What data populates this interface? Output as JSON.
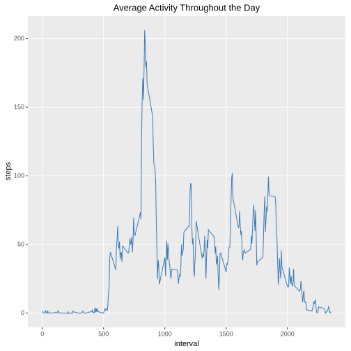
{
  "chart_data": {
    "type": "line",
    "title": "Average Activity Throughout the Day",
    "x_label": "interval",
    "y_label": "steps",
    "color": "#3b7bb5",
    "grid": true,
    "xlim": [
      -118,
      2473
    ],
    "xticks": [
      0,
      500,
      1000,
      1500,
      2000
    ],
    "ylim": [
      -10.3,
      216.5
    ],
    "yticks": [
      0,
      50,
      100,
      150,
      200
    ],
    "x": [
      0,
      5,
      10,
      15,
      20,
      25,
      30,
      35,
      40,
      45,
      50,
      55,
      100,
      105,
      110,
      115,
      120,
      125,
      130,
      135,
      140,
      145,
      150,
      155,
      200,
      205,
      210,
      215,
      220,
      225,
      230,
      235,
      240,
      245,
      250,
      255,
      300,
      305,
      310,
      315,
      320,
      325,
      330,
      335,
      340,
      345,
      350,
      355,
      400,
      405,
      410,
      415,
      420,
      425,
      430,
      435,
      440,
      445,
      450,
      455,
      500,
      505,
      510,
      515,
      520,
      525,
      530,
      535,
      540,
      545,
      550,
      555,
      600,
      605,
      610,
      615,
      620,
      625,
      630,
      635,
      640,
      645,
      650,
      655,
      700,
      705,
      710,
      715,
      720,
      725,
      730,
      735,
      740,
      745,
      750,
      755,
      800,
      805,
      810,
      815,
      820,
      825,
      830,
      835,
      840,
      845,
      850,
      855,
      900,
      905,
      910,
      915,
      920,
      925,
      930,
      935,
      940,
      945,
      950,
      955,
      1000,
      1005,
      1010,
      1015,
      1020,
      1025,
      1030,
      1035,
      1040,
      1045,
      1050,
      1055,
      1100,
      1105,
      1110,
      1115,
      1120,
      1125,
      1130,
      1135,
      1140,
      1145,
      1150,
      1155,
      1200,
      1205,
      1210,
      1215,
      1220,
      1225,
      1230,
      1235,
      1240,
      1245,
      1250,
      1255,
      1300,
      1305,
      1310,
      1315,
      1320,
      1325,
      1330,
      1335,
      1340,
      1345,
      1350,
      1355,
      1400,
      1405,
      1410,
      1415,
      1420,
      1425,
      1430,
      1435,
      1440,
      1445,
      1450,
      1455,
      1500,
      1505,
      1510,
      1515,
      1520,
      1525,
      1530,
      1535,
      1540,
      1545,
      1550,
      1555,
      1600,
      1605,
      1610,
      1615,
      1620,
      1625,
      1630,
      1635,
      1640,
      1645,
      1650,
      1655,
      1700,
      1705,
      1710,
      1715,
      1720,
      1725,
      1730,
      1735,
      1740,
      1745,
      1750,
      1755,
      1800,
      1805,
      1810,
      1815,
      1820,
      1825,
      1830,
      1835,
      1840,
      1845,
      1850,
      1855,
      1900,
      1905,
      1910,
      1915,
      1920,
      1925,
      1930,
      1935,
      1940,
      1945,
      1950,
      1955,
      2000,
      2005,
      2010,
      2015,
      2020,
      2025,
      2030,
      2035,
      2040,
      2045,
      2050,
      2055,
      2100,
      2105,
      2110,
      2115,
      2120,
      2125,
      2130,
      2135,
      2140,
      2145,
      2150,
      2155,
      2200,
      2205,
      2210,
      2215,
      2220,
      2225,
      2230,
      2235,
      2240,
      2245,
      2250,
      2255,
      2300,
      2305,
      2310,
      2315,
      2320,
      2325,
      2330,
      2335,
      2340,
      2345,
      2350,
      2355
    ],
    "values": [
      1.7,
      0.3,
      0.1,
      0.2,
      0.1,
      2.1,
      0.5,
      0.9,
      0,
      1.5,
      0.3,
      0.1,
      0.3,
      0.7,
      0.2,
      0.3,
      0,
      1.1,
      1.8,
      0.2,
      0.2,
      0.4,
      0.3,
      0,
      0,
      0,
      1.1,
      0,
      0,
      0.1,
      0,
      0.2,
      0,
      0,
      1.5,
      0.9,
      0,
      0,
      0,
      0,
      0.2,
      0.6,
      1.6,
      0.6,
      0.5,
      0.1,
      0,
      0,
      1.2,
      0.9,
      2.6,
      0,
      0.3,
      0.4,
      4.1,
      0.7,
      3.5,
      0.8,
      3.1,
      1.1,
      0,
      1.6,
      3,
      2.2,
      3.3,
      3,
      2.1,
      6.1,
      16,
      18.3,
      39.5,
      44.5,
      31.5,
      49.3,
      53.8,
      63.5,
      50,
      47.1,
      52.2,
      39.3,
      44,
      44.2,
      37.4,
      49,
      43.8,
      44.4,
      50.5,
      54.5,
      49.9,
      51,
      55.7,
      44.3,
      52.3,
      69.5,
      57.8,
      56.2,
      73.4,
      68.2,
      129.4,
      157.5,
      171.2,
      155.4,
      177.3,
      206.2,
      195.9,
      179.6,
      183.4,
      167,
      143.5,
      124,
      109.1,
      108.1,
      103.7,
      96,
      66.2,
      45.2,
      24.8,
      38.8,
      35,
      21.1,
      40.6,
      27,
      42.4,
      52.7,
      38.9,
      50.8,
      44.3,
      37.4,
      34.7,
      28.3,
      25.1,
      31.9,
      31.4,
      29.7,
      21.3,
      25.5,
      28.4,
      26.5,
      33.4,
      50,
      42,
      44.6,
      46,
      59.2,
      63.9,
      87.7,
      94.8,
      92.8,
      63.4,
      50.2,
      54.5,
      32.4,
      26.5,
      37.7,
      45.1,
      67.3,
      42.3,
      39.9,
      43.3,
      41,
      46.2,
      56.4,
      42.8,
      25.1,
      40,
      53.5,
      47.3,
      60.8,
      55.8,
      52,
      43.6,
      48.7,
      35.5,
      37.5,
      41.8,
      27.5,
      17.1,
      26.1,
      43.6,
      43.8,
      30,
      36.1,
      35.5,
      38.8,
      46,
      47.8,
      48.1,
      65.3,
      82.9,
      98.7,
      102.1,
      84,
      62.1,
      64.1,
      74.5,
      63.2,
      56.9,
      59.8,
      43.9,
      38.6,
      44.7,
      45.5,
      46.2,
      43.7,
      46.6,
      56.3,
      50.7,
      61.2,
      72.7,
      78.9,
      68.9,
      59.7,
      75.1,
      56.5,
      34.8,
      37.5,
      40.7,
      58,
      74.7,
      85.3,
      59.3,
      67.8,
      77.7,
      74.2,
      85.3,
      99.5,
      86.6,
      85.6,
      84.9,
      77.8,
      58,
      53.4,
      36.3,
      20.7,
      27.4,
      40,
      30.2,
      25.5,
      45.7,
      33.5,
      19.6,
      19,
      19.3,
      33.3,
      26.8,
      21.2,
      27.3,
      21.3,
      19.5,
      21.3,
      32.3,
      20.2,
      15.9,
      17.2,
      23.5,
      19.2,
      12.5,
      8,
      14.7,
      16.3,
      8.7,
      7.8,
      8.1,
      2.6,
      1.5,
      3.7,
      4.8,
      8.5,
      7.1,
      8.7,
      9.8,
      2.2,
      0.3,
      0.1,
      1.6,
      4.6,
      3.3,
      2.8,
      0,
      0.8,
      1,
      1.6,
      2.6,
      4.7,
      3.3,
      0.6,
      0.2,
      1.1
    ]
  }
}
